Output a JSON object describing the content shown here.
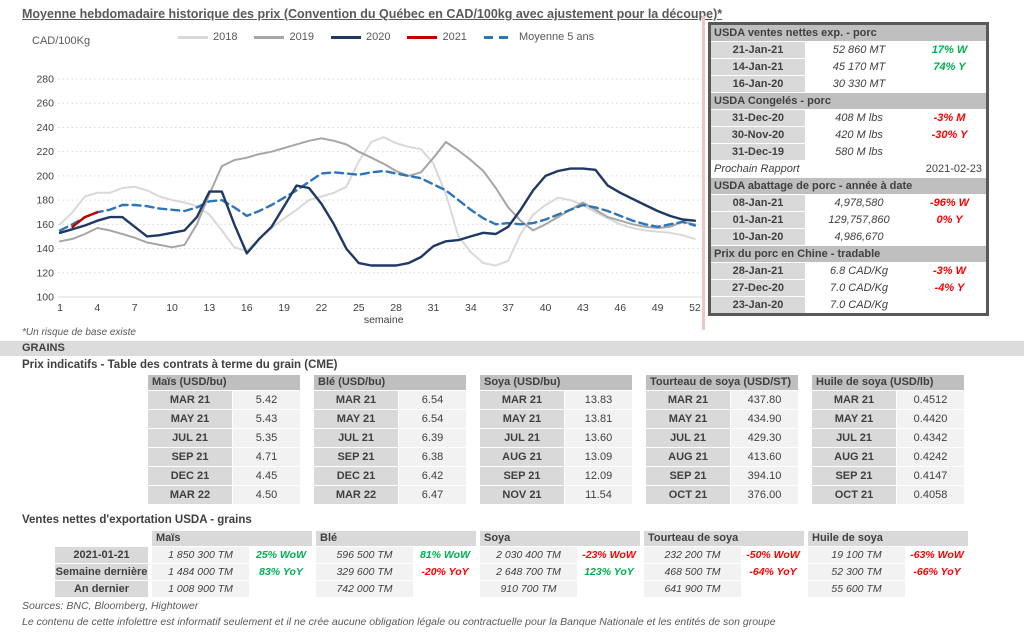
{
  "title": "Moyenne hebdomadaire historique des prix (Convention du Québec en CAD/100kg avec ajustement pour la découpe)*",
  "footnote": "*Un risque de base existe",
  "colors": {
    "green": "#00b050",
    "red": "#ff0000",
    "header_gray": "#bfbfbf",
    "cell_gray": "#d9d9d9",
    "cell_light": "#f2f2f2",
    "grid": "#d9d9d9",
    "text": "#404040"
  },
  "chart_data": {
    "type": "line",
    "ylabel_unit": "CAD/100Kg",
    "xlabel": "semaine",
    "ylim": [
      100,
      280
    ],
    "ytick_step": 20,
    "xticks": [
      1,
      4,
      7,
      10,
      13,
      16,
      19,
      22,
      25,
      28,
      31,
      34,
      37,
      40,
      43,
      46,
      49,
      52
    ],
    "grid": "dotted horizontal",
    "legend_position": "top",
    "series": [
      {
        "name": "2018",
        "color": "#d9d9d9",
        "dash": null,
        "values": [
          160,
          170,
          183,
          186,
          186,
          190,
          191,
          188,
          183,
          180,
          178,
          175,
          168,
          155,
          141,
          138,
          148,
          157,
          165,
          172,
          180,
          183,
          186,
          191,
          212,
          228,
          232,
          227,
          224,
          222,
          210,
          185,
          150,
          137,
          128,
          126,
          130,
          152,
          168,
          176,
          182,
          180,
          176,
          170,
          165,
          160,
          157,
          155,
          154,
          153,
          151,
          148
        ]
      },
      {
        "name": "2019",
        "color": "#a6a6a6",
        "dash": null,
        "values": [
          146,
          148,
          152,
          157,
          155,
          152,
          149,
          145,
          143,
          141,
          143,
          160,
          185,
          208,
          213,
          215,
          218,
          220,
          223,
          226,
          229,
          231,
          229,
          226,
          220,
          215,
          210,
          204,
          200,
          203,
          215,
          228,
          221,
          213,
          204,
          190,
          174,
          163,
          155,
          160,
          166,
          172,
          178,
          172,
          166,
          163,
          160,
          158,
          157,
          158,
          162,
          160
        ]
      },
      {
        "name": "Moyenne 5 ans",
        "color": "#2e75b6",
        "dash": "8,5",
        "values": [
          155,
          160,
          166,
          170,
          172,
          176,
          176,
          175,
          173,
          172,
          171,
          174,
          179,
          180,
          174,
          167,
          171,
          176,
          182,
          188,
          195,
          202,
          203,
          202,
          201,
          203,
          204,
          202,
          200,
          198,
          193,
          188,
          180,
          172,
          165,
          160,
          161,
          160,
          161,
          164,
          168,
          172,
          176,
          174,
          171,
          167,
          163,
          160,
          158,
          160,
          162,
          159
        ]
      },
      {
        "name": "2020",
        "color": "#1f3864",
        "dash": null,
        "values": [
          153,
          156,
          159,
          163,
          166,
          166,
          158,
          150,
          151,
          153,
          155,
          166,
          187,
          187,
          160,
          136,
          148,
          158,
          175,
          192,
          190,
          177,
          160,
          140,
          128,
          126,
          126,
          126,
          128,
          133,
          142,
          146,
          147,
          150,
          153,
          152,
          158,
          172,
          188,
          200,
          204,
          206,
          206,
          205,
          192,
          186,
          181,
          176,
          171,
          167,
          164,
          163
        ]
      },
      {
        "name": "2021",
        "color": "#c00000",
        "dash": null,
        "values": [
          null,
          158,
          166,
          170
        ]
      }
    ],
    "legend_order": [
      "2018",
      "2019",
      "2020",
      "2021",
      "Moyenne 5 ans"
    ]
  },
  "pork_panel": {
    "rows": [
      {
        "t": "h",
        "label": "USDA ventes nettes exp. - porc"
      },
      {
        "t": "d",
        "date": "21-Jan-21",
        "value": "52 860  MT",
        "chg": "17% W",
        "c": "g"
      },
      {
        "t": "d",
        "date": "14-Jan-21",
        "value": "45 170  MT",
        "chg": "74% Y",
        "c": "g"
      },
      {
        "t": "d",
        "date": "16-Jan-20",
        "value": "30 330  MT",
        "chg": "",
        "c": ""
      },
      {
        "t": "h",
        "label": "USDA Congelés - porc"
      },
      {
        "t": "d",
        "date": "31-Dec-20",
        "value": "408 M lbs",
        "chg": "-3% M",
        "c": "r"
      },
      {
        "t": "d",
        "date": "30-Nov-20",
        "value": "420 M lbs",
        "chg": "-30% Y",
        "c": "r"
      },
      {
        "t": "d",
        "date": "31-Dec-19",
        "value": "580 M lbs",
        "chg": "",
        "c": ""
      },
      {
        "t": "n",
        "label": "Prochain Rapport",
        "value": "2021-02-23"
      },
      {
        "t": "h",
        "label": "USDA abattage de porc - année à date"
      },
      {
        "t": "d",
        "date": "08-Jan-21",
        "value": "4,978,580",
        "chg": "-96% W",
        "c": "r"
      },
      {
        "t": "d",
        "date": "01-Jan-21",
        "value": "129,757,860",
        "chg": "0% Y",
        "c": "r"
      },
      {
        "t": "d",
        "date": "10-Jan-20",
        "value": "4,986,670",
        "chg": "",
        "c": ""
      },
      {
        "t": "h",
        "label": "Prix du porc en Chine - tradable"
      },
      {
        "t": "d",
        "date": "28-Jan-21",
        "value": "6.8 CAD/Kg",
        "chg": "-3% W",
        "c": "r"
      },
      {
        "t": "d",
        "date": "27-Dec-20",
        "value": "7.0 CAD/Kg",
        "chg": "-4% Y",
        "c": "r"
      },
      {
        "t": "d",
        "date": "23-Jan-20",
        "value": "7.0 CAD/Kg",
        "chg": "",
        "c": ""
      }
    ]
  },
  "grains": {
    "section_label": "GRAINS",
    "futures_title": "Prix indicatifs - Table des contrats à terme du grain (CME)",
    "futures_groups": [
      {
        "header": "Maïs (USD/bu)",
        "rows": [
          [
            "MAR 21",
            "5.42"
          ],
          [
            "MAY 21",
            "5.43"
          ],
          [
            "JUL 21",
            "5.35"
          ],
          [
            "SEP 21",
            "4.71"
          ],
          [
            "DEC 21",
            "4.45"
          ],
          [
            "MAR 22",
            "4.50"
          ]
        ]
      },
      {
        "header": "Blé (USD/bu)",
        "rows": [
          [
            "MAR 21",
            "6.54"
          ],
          [
            "MAY 21",
            "6.54"
          ],
          [
            "JUL 21",
            "6.39"
          ],
          [
            "SEP 21",
            "6.38"
          ],
          [
            "DEC 21",
            "6.42"
          ],
          [
            "MAR 22",
            "6.47"
          ]
        ]
      },
      {
        "header": "Soya (USD/bu)",
        "rows": [
          [
            "MAR 21",
            "13.83"
          ],
          [
            "MAY 21",
            "13.81"
          ],
          [
            "JUL 21",
            "13.60"
          ],
          [
            "AUG 21",
            "13.09"
          ],
          [
            "SEP 21",
            "12.09"
          ],
          [
            "NOV 21",
            "11.54"
          ]
        ]
      },
      {
        "header": "Tourteau de soya (USD/ST)",
        "rows": [
          [
            "MAR 21",
            "437.80"
          ],
          [
            "MAY 21",
            "434.90"
          ],
          [
            "JUL 21",
            "429.30"
          ],
          [
            "AUG 21",
            "413.60"
          ],
          [
            "SEP 21",
            "394.10"
          ],
          [
            "OCT 21",
            "376.00"
          ]
        ]
      },
      {
        "header": "Huile de soya (USD/lb)",
        "rows": [
          [
            "MAR 21",
            "0.4512"
          ],
          [
            "MAY 21",
            "0.4420"
          ],
          [
            "JUL 21",
            "0.4342"
          ],
          [
            "AUG 21",
            "0.4242"
          ],
          [
            "SEP 21",
            "0.4147"
          ],
          [
            "OCT 21",
            "0.4058"
          ]
        ]
      }
    ]
  },
  "exports": {
    "title": "Ventes nettes d'exportation USDA - grains",
    "row_labels": [
      "2021-01-21",
      "Semaine dernière",
      "An dernier"
    ],
    "groups": [
      {
        "header": "Maïs",
        "rows": [
          [
            "1 850 300 TM",
            "25% WoW",
            "g"
          ],
          [
            "1 484 000 TM",
            "83% YoY",
            "g"
          ],
          [
            "1 008 900 TM",
            "",
            ""
          ]
        ]
      },
      {
        "header": "Blé",
        "rows": [
          [
            "596 500 TM",
            "81% WoW",
            "g"
          ],
          [
            "329 600 TM",
            "-20% YoY",
            "r"
          ],
          [
            "742 000 TM",
            "",
            ""
          ]
        ]
      },
      {
        "header": "Soya",
        "rows": [
          [
            "2 030 400 TM",
            "-23% WoW",
            "r"
          ],
          [
            "2 648 700 TM",
            "123% YoY",
            "g"
          ],
          [
            "910 700 TM",
            "",
            ""
          ]
        ]
      },
      {
        "header": "Tourteau de soya",
        "rows": [
          [
            "232 200 TM",
            "-50% WoW",
            "r"
          ],
          [
            "468 500 TM",
            "-64% YoY",
            "r"
          ],
          [
            "641 900 TM",
            "",
            ""
          ]
        ]
      },
      {
        "header": "Huile de soya",
        "rows": [
          [
            "19 100 TM",
            "-63% WoW",
            "r"
          ],
          [
            "52 300 TM",
            "-66% YoY",
            "r"
          ],
          [
            "55 600 TM",
            "",
            ""
          ]
        ]
      }
    ]
  },
  "footer": {
    "sources": "Sources: BNC, Bloomberg, Hightower",
    "disclaimer": "Le contenu de cette infolettre est informatif seulement et il ne crée aucune obligation légale ou contractuelle pour la Banque Nationale et les entités de son groupe"
  }
}
